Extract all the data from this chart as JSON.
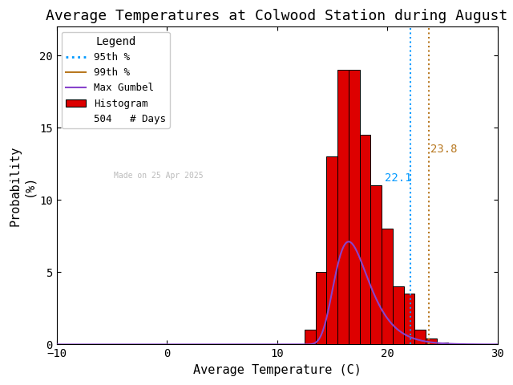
{
  "title": "Average Temperatures at Colwood Station during August",
  "xlabel": "Average Temperature (C)",
  "ylabel": "Probability\n(%)",
  "xlim": [
    -10,
    30
  ],
  "ylim": [
    0,
    22
  ],
  "yticks": [
    0,
    5,
    10,
    15,
    20
  ],
  "xticks": [
    -10,
    0,
    10,
    20,
    30
  ],
  "bin_centers": [
    13,
    14,
    15,
    16,
    17,
    18,
    19,
    20,
    21,
    22,
    23,
    24,
    25
  ],
  "bin_heights": [
    1.0,
    5.0,
    13.0,
    19.0,
    19.0,
    14.5,
    11.0,
    8.0,
    4.0,
    3.5,
    1.0,
    0.4,
    0.15
  ],
  "bin_width": 1.0,
  "hist_color": "#dd0000",
  "hist_edgecolor": "#000000",
  "gumbel_mu": 16.5,
  "gumbel_beta": 1.55,
  "gumbel_scale": 30.0,
  "pct95": 22.1,
  "pct99": 23.8,
  "pct95_color": "#0099ff",
  "pct99_color": "#b87820",
  "gumbel_color": "#8844cc",
  "n_days": 504,
  "watermark": "Made on 25 Apr 2025",
  "watermark_color": "#bbbbbb",
  "legend_title": "Legend",
  "background_color": "#ffffff",
  "title_fontsize": 13,
  "axis_fontsize": 11,
  "tick_fontsize": 10
}
